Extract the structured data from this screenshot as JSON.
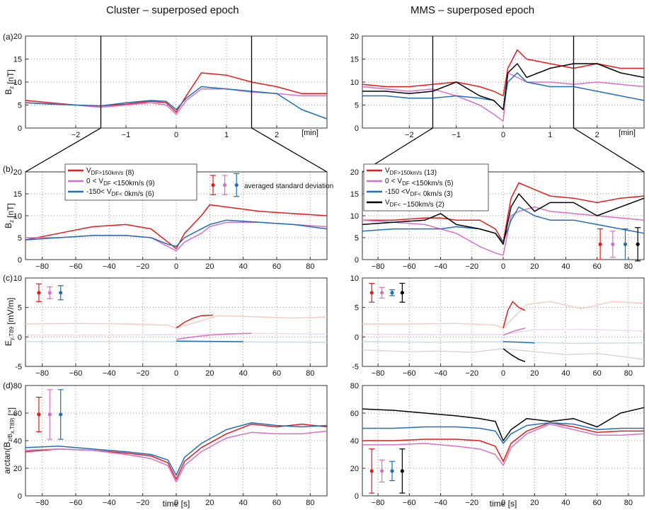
{
  "titles": {
    "left": "Cluster – superposed epoch",
    "right": "MMS – superposed epoch"
  },
  "panel_labels": [
    "(a)",
    "(b)",
    "(c)",
    "(d)"
  ],
  "units": {
    "min": "[min]"
  },
  "xlabel_time": "time [s]",
  "ylabels": {
    "a": "B_z [nT]",
    "b": "B_z [nT]",
    "c": "E_y,T89 [mV/m]",
    "d": "arctan(B_z/B_x,T89) [°]"
  },
  "legend_cluster": [
    {
      "label": "V_DF>150km/s (8)",
      "color": "#e41a1c"
    },
    {
      "label": "0 < V_DF <150km/s (9)",
      "color": "#d670c8"
    },
    {
      "label": "-150< V_DF< 0km/s (6)",
      "color": "#1f6fb4"
    }
  ],
  "legend_mms": [
    {
      "label": "V_DF>150km/s (13)",
      "color": "#e41a1c"
    },
    {
      "label": "0 < V_DF <150km/s (5)",
      "color": "#d670c8"
    },
    {
      "label": "-150 <V_DF< 0km/s (3)",
      "color": "#1f6fb4"
    },
    {
      "label": "V_DF< −150km/s (2)",
      "color": "#000000"
    }
  ],
  "annotation_sd": "averaged standard deviation",
  "colors": {
    "red": "#e41a1c",
    "pink": "#d670c8",
    "blue": "#1f6fb4",
    "black": "#000000"
  },
  "chart_data": [
    {
      "panel": "a-left",
      "type": "line",
      "x_unit": "min",
      "xlim": [
        -3,
        3
      ],
      "ylim": [
        0,
        20
      ],
      "xticks": [
        -2,
        -1,
        0,
        1,
        2
      ],
      "yticks": [
        0,
        5,
        10,
        15,
        20
      ],
      "x": [
        -3,
        -2.5,
        -2,
        -1.5,
        -1,
        -0.5,
        -0.2,
        0,
        0.2,
        0.5,
        1,
        1.5,
        2,
        2.5,
        3
      ],
      "series": [
        {
          "values": [
            6,
            5.5,
            5,
            4.8,
            5.2,
            5.8,
            5.5,
            3.5,
            7,
            12,
            11.5,
            10,
            9,
            7.5,
            7.5
          ]
        },
        {
          "values": [
            5.5,
            5.3,
            5,
            4.5,
            5,
            5.5,
            5,
            3,
            6,
            8.5,
            8.5,
            7.8,
            7.5,
            7,
            7
          ]
        },
        {
          "values": [
            5.5,
            5.2,
            5,
            4.8,
            5.5,
            6,
            5.8,
            4,
            6.5,
            9,
            8.5,
            8,
            7.5,
            4,
            2
          ]
        }
      ]
    },
    {
      "panel": "a-right",
      "type": "line",
      "x_unit": "min",
      "xlim": [
        -3,
        3
      ],
      "ylim": [
        0,
        20
      ],
      "xticks": [
        -2,
        -1,
        0,
        1,
        2
      ],
      "yticks": [
        0,
        5,
        10,
        15,
        20
      ],
      "x": [
        -3,
        -2.5,
        -2,
        -1.5,
        -1,
        -0.5,
        -0.2,
        0,
        0.1,
        0.3,
        0.5,
        1,
        1.5,
        2,
        2.5,
        3
      ],
      "series": [
        {
          "values": [
            9.5,
            9,
            9,
            9.5,
            10,
            9,
            8,
            7,
            13,
            17,
            15,
            14,
            13,
            14,
            13,
            13
          ]
        },
        {
          "values": [
            9,
            8.5,
            8,
            8.5,
            7,
            5,
            3,
            1.5,
            12,
            11,
            10,
            10,
            9.5,
            10,
            9.5,
            9
          ]
        },
        {
          "values": [
            7,
            7,
            6.5,
            6.5,
            7,
            6.5,
            6,
            4,
            10,
            12,
            10,
            9,
            9,
            8,
            7,
            6
          ]
        },
        {
          "values": [
            8,
            8,
            7.5,
            8,
            10,
            7,
            6,
            4,
            12,
            14,
            11,
            13,
            14,
            14,
            12,
            11
          ]
        }
      ]
    },
    {
      "panel": "b-left",
      "type": "line",
      "xlim": [
        -90,
        90
      ],
      "ylim": [
        0,
        20
      ],
      "xticks": [
        -80,
        -60,
        -40,
        -20,
        0,
        20,
        40,
        60,
        80
      ],
      "yticks": [
        0,
        5,
        10,
        15,
        20
      ],
      "x": [
        -90,
        -70,
        -50,
        -30,
        -15,
        -5,
        0,
        5,
        15,
        20,
        30,
        50,
        70,
        90
      ],
      "series": [
        {
          "name": "V_DF>150km/s (8)",
          "values": [
            4.5,
            6,
            7.5,
            8,
            7,
            4,
            2.5,
            6,
            10,
            12.5,
            12,
            11,
            10.5,
            10
          ]
        },
        {
          "name": "0 < V_DF <150km/s (9)",
          "values": [
            5,
            5,
            5.5,
            5.5,
            5,
            3,
            2,
            4,
            6,
            7.5,
            8.5,
            8.5,
            8,
            7.5
          ]
        },
        {
          "name": "-150< V_DF< 0km/s (6)",
          "values": [
            4.5,
            5,
            5.5,
            5.5,
            5,
            3.5,
            3,
            5,
            7,
            8,
            9,
            8.5,
            8,
            7
          ]
        }
      ],
      "error_bars": [
        {
          "center": 17,
          "half": 2.2
        },
        {
          "center": 17,
          "half": 2.2
        },
        {
          "center": 17,
          "half": 2.6
        }
      ]
    },
    {
      "panel": "b-right",
      "type": "line",
      "xlim": [
        -90,
        90
      ],
      "ylim": [
        0,
        20
      ],
      "xticks": [
        -80,
        -60,
        -40,
        -20,
        0,
        20,
        40,
        60,
        80
      ],
      "yticks": [
        0,
        5,
        10,
        15,
        20
      ],
      "x": [
        -90,
        -70,
        -50,
        -40,
        -30,
        -15,
        -5,
        0,
        5,
        10,
        20,
        30,
        45,
        60,
        75,
        90
      ],
      "series": [
        {
          "name": "V_DF>150km/s (13)",
          "values": [
            9,
            9,
            9.5,
            9.5,
            9,
            9,
            7,
            4,
            14,
            17.5,
            16,
            14.5,
            14,
            13,
            14,
            14.5
          ]
        },
        {
          "name": "0 < V_DF <150km/s (5)",
          "values": [
            9,
            8.5,
            8,
            7,
            6,
            3,
            1.5,
            1,
            10,
            11,
            12,
            11,
            10.5,
            10,
            9.5,
            9
          ]
        },
        {
          "name": "-150 <V_DF< 0km/s (3)",
          "values": [
            6.5,
            7,
            7,
            7,
            7.5,
            7,
            6,
            4,
            9,
            12,
            10,
            9,
            9,
            8,
            7,
            6
          ]
        },
        {
          "name": "V_DF< −150km/s (2)",
          "values": [
            8,
            8.5,
            9,
            10.5,
            8,
            7,
            6,
            3.5,
            12,
            15,
            11,
            13,
            13,
            10,
            12,
            14
          ]
        }
      ],
      "error_bars": [
        {
          "center": 3.5,
          "half": 3.5
        },
        {
          "center": 3.5,
          "half": 3
        },
        {
          "center": 3.5,
          "half": 3.5
        },
        {
          "center": 3.5,
          "half": 3.8
        }
      ]
    },
    {
      "panel": "c-left",
      "type": "line",
      "xlim": [
        -90,
        90
      ],
      "ylim": [
        -5,
        10
      ],
      "xticks": [
        -80,
        -60,
        -40,
        -20,
        0,
        20,
        40,
        60,
        80
      ],
      "yticks": [
        -5,
        0,
        5,
        10
      ],
      "series": [
        {
          "x": [
            0,
            5,
            10,
            15,
            22
          ],
          "values": [
            1.5,
            2.5,
            3.2,
            3.6,
            3.7
          ]
        },
        {
          "x": [
            0,
            10,
            20,
            30,
            45
          ],
          "values": [
            -0.4,
            0.0,
            0.3,
            0.5,
            0.6
          ]
        },
        {
          "x": [
            0,
            20,
            40
          ],
          "values": [
            -0.7,
            -0.75,
            -0.8
          ]
        }
      ],
      "faded": [
        {
          "x": [
            -90,
            -60,
            -30,
            -5,
            0,
            25,
            50,
            70,
            90
          ],
          "values": [
            2.2,
            2.3,
            2.2,
            2.0,
            1.5,
            3.6,
            3.4,
            3.2,
            3.4
          ]
        },
        {
          "x": [
            -90,
            -45,
            0,
            45,
            90
          ],
          "values": [
            0.3,
            0.3,
            0.4,
            0.6,
            0.5
          ]
        },
        {
          "x": [
            -90,
            0,
            90
          ],
          "values": [
            -0.8,
            -0.8,
            -0.9
          ]
        }
      ],
      "error_bars": [
        {
          "center": 7.5,
          "half": 1.5
        },
        {
          "center": 7.5,
          "half": 1.0
        },
        {
          "center": 7.5,
          "half": 1.2
        }
      ]
    },
    {
      "panel": "c-right",
      "type": "line",
      "xlim": [
        -90,
        90
      ],
      "ylim": [
        -5,
        10
      ],
      "xticks": [
        -80,
        -60,
        -40,
        -20,
        0,
        20,
        40,
        60,
        80
      ],
      "yticks": [
        -5,
        0,
        5,
        10
      ],
      "series": [
        {
          "x": [
            0,
            3,
            6,
            10,
            14
          ],
          "values": [
            1.5,
            4.5,
            6,
            5,
            4.5
          ]
        },
        {
          "x": [
            0,
            7,
            14
          ],
          "values": [
            0.3,
            1.0,
            1.5
          ]
        },
        {
          "x": [
            0,
            10,
            20
          ],
          "values": [
            -0.8,
            -0.9,
            -1.0
          ]
        },
        {
          "x": [
            0,
            5,
            10,
            14
          ],
          "values": [
            -2,
            -3,
            -3.8,
            -4.2
          ]
        }
      ],
      "faded": [
        {
          "x": [
            -90,
            -60,
            -30,
            -5,
            0,
            15,
            30,
            50,
            70,
            90
          ],
          "values": [
            2.2,
            2.2,
            2.3,
            2,
            1.5,
            5.5,
            6,
            4.8,
            6,
            5.7
          ]
        },
        {
          "x": [
            -90,
            -45,
            0,
            20,
            50,
            90
          ],
          "values": [
            0.5,
            0.4,
            0.4,
            1.2,
            1.3,
            1.0
          ]
        },
        {
          "x": [
            -90,
            -45,
            0,
            45,
            90
          ],
          "values": [
            -0.8,
            -0.9,
            -0.8,
            -1.1,
            -1.0
          ]
        },
        {
          "x": [
            -90,
            -60,
            -40,
            -20,
            0,
            20,
            40,
            60,
            90
          ],
          "values": [
            -2.2,
            -2.5,
            -2.4,
            -2.6,
            -2.0,
            -2.5,
            -3.0,
            -2.8,
            -3.8
          ]
        }
      ],
      "error_bars": [
        {
          "center": 7.5,
          "half": 1.6
        },
        {
          "center": 7.5,
          "half": 0.9
        },
        {
          "center": 7.5,
          "half": 0.5
        },
        {
          "center": 7.5,
          "half": 1.6
        }
      ]
    },
    {
      "panel": "d-left",
      "type": "line",
      "xlim": [
        -90,
        90
      ],
      "ylim": [
        0,
        80
      ],
      "xticks": [
        -80,
        -60,
        -40,
        -20,
        0,
        20,
        40,
        60,
        80
      ],
      "yticks": [
        0,
        20,
        40,
        60,
        80
      ],
      "x": [
        -90,
        -70,
        -50,
        -30,
        -15,
        -5,
        0,
        5,
        15,
        30,
        45,
        60,
        75,
        90
      ],
      "series": [
        {
          "values": [
            32,
            34,
            33,
            31,
            29,
            24,
            12,
            25,
            35,
            45,
            52,
            50,
            52,
            50
          ]
        },
        {
          "values": [
            33,
            34,
            33,
            30,
            27,
            22,
            10,
            22,
            32,
            42,
            46,
            45,
            45,
            47
          ]
        },
        {
          "values": [
            35,
            36,
            34,
            32,
            30,
            26,
            15,
            28,
            38,
            48,
            53,
            51,
            50,
            51
          ]
        }
      ],
      "error_bars": [
        {
          "center": 59,
          "half": 12.5
        },
        {
          "center": 59,
          "half": 18
        },
        {
          "center": 59,
          "half": 18
        }
      ]
    },
    {
      "panel": "d-right",
      "type": "line",
      "xlim": [
        -90,
        90
      ],
      "ylim": [
        0,
        80
      ],
      "xticks": [
        -80,
        -60,
        -40,
        -20,
        0,
        20,
        40,
        60,
        80
      ],
      "yticks": [
        0,
        20,
        40,
        60,
        80
      ],
      "x": [
        -90,
        -70,
        -50,
        -30,
        -15,
        -5,
        0,
        5,
        15,
        30,
        45,
        60,
        75,
        90
      ],
      "series": [
        {
          "values": [
            40,
            40,
            41,
            41,
            40,
            36,
            25,
            38,
            47,
            53,
            50,
            46,
            47,
            47
          ]
        },
        {
          "values": [
            37,
            37,
            38,
            36,
            34,
            30,
            22,
            35,
            45,
            52,
            48,
            44,
            44,
            45
          ]
        },
        {
          "values": [
            49,
            49,
            50,
            50,
            49,
            47,
            38,
            45,
            51,
            53,
            52,
            48,
            49,
            49
          ]
        },
        {
          "values": [
            63,
            62,
            60,
            58,
            56,
            54,
            40,
            48,
            56,
            54,
            56,
            50,
            60,
            64
          ]
        }
      ],
      "error_bars": [
        {
          "center": 18,
          "half": 16
        },
        {
          "center": 18,
          "half": 8
        },
        {
          "center": 18,
          "half": 7
        },
        {
          "center": 18,
          "half": 16
        }
      ]
    }
  ]
}
